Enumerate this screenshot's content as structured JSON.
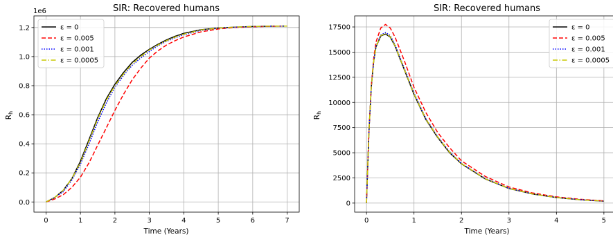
{
  "chart_data": [
    {
      "type": "line",
      "title": "SIR: Recovered humans",
      "xlabel": "Time (Years)",
      "ylabel": "R_h",
      "offset_text": "1e6",
      "xlim": [
        -0.35,
        7.35
      ],
      "ylim": [
        -0.07,
        1.28
      ],
      "xticks": [
        0,
        1,
        2,
        3,
        4,
        5,
        6,
        7
      ],
      "xtick_labels": [
        "0",
        "1",
        "2",
        "3",
        "4",
        "5",
        "6",
        "7"
      ],
      "yticks": [
        0,
        0.2,
        0.4,
        0.6,
        0.8,
        1.0,
        1.2
      ],
      "ytick_labels": [
        "0.0",
        "0.2",
        "0.4",
        "0.6",
        "0.8",
        "1.0",
        "1.2"
      ],
      "grid": true,
      "legend_position": "top-left",
      "x": [
        0,
        0.25,
        0.5,
        0.75,
        1,
        1.25,
        1.5,
        1.75,
        2,
        2.25,
        2.5,
        2.75,
        3,
        3.25,
        3.5,
        3.75,
        4,
        4.5,
        5,
        5.5,
        6,
        6.5,
        7
      ],
      "series": [
        {
          "name": "ε = 0",
          "color": "#000000",
          "dash": "solid",
          "values": [
            0,
            0.03,
            0.08,
            0.16,
            0.28,
            0.43,
            0.58,
            0.71,
            0.81,
            0.89,
            0.96,
            1.01,
            1.05,
            1.085,
            1.115,
            1.14,
            1.16,
            1.185,
            1.197,
            1.203,
            1.207,
            1.209,
            1.21
          ]
        },
        {
          "name": "ε = 0.005",
          "color": "#ff0000",
          "dash": "dashed",
          "values": [
            0,
            0.02,
            0.05,
            0.1,
            0.17,
            0.27,
            0.39,
            0.51,
            0.63,
            0.74,
            0.84,
            0.92,
            0.99,
            1.04,
            1.08,
            1.11,
            1.135,
            1.17,
            1.19,
            1.2,
            1.205,
            1.208,
            1.21
          ]
        },
        {
          "name": "ε = 0.001",
          "color": "#0000ff",
          "dash": "dotted",
          "values": [
            0,
            0.03,
            0.07,
            0.15,
            0.26,
            0.4,
            0.55,
            0.68,
            0.79,
            0.87,
            0.94,
            0.99,
            1.035,
            1.075,
            1.105,
            1.13,
            1.15,
            1.18,
            1.195,
            1.202,
            1.206,
            1.209,
            1.21
          ]
        },
        {
          "name": "ε = 0.0005",
          "color": "#c8c800",
          "dash": "dashdot",
          "values": [
            0,
            0.03,
            0.08,
            0.16,
            0.27,
            0.42,
            0.57,
            0.7,
            0.8,
            0.88,
            0.95,
            1.0,
            1.045,
            1.08,
            1.11,
            1.135,
            1.155,
            1.183,
            1.196,
            1.203,
            1.207,
            1.209,
            1.21
          ]
        }
      ]
    },
    {
      "type": "line",
      "title": "SIR: Recovered humans",
      "xlabel": "Time (Years)",
      "ylabel": "R_h",
      "xlim": [
        -0.25,
        5.25
      ],
      "ylim": [
        -900,
        18600
      ],
      "xticks": [
        0,
        1,
        2,
        3,
        4,
        5
      ],
      "xtick_labels": [
        "0",
        "1",
        "2",
        "3",
        "4",
        "5"
      ],
      "yticks": [
        0,
        2500,
        5000,
        7500,
        10000,
        12500,
        15000,
        17500
      ],
      "ytick_labels": [
        "0",
        "2500",
        "5000",
        "7500",
        "10000",
        "12500",
        "15000",
        "17500"
      ],
      "grid": true,
      "legend_position": "top-right",
      "x": [
        0,
        0.05,
        0.1,
        0.15,
        0.2,
        0.3,
        0.4,
        0.5,
        0.6,
        0.8,
        1.0,
        1.25,
        1.5,
        1.75,
        2.0,
        2.5,
        3.0,
        3.5,
        4.0,
        4.5,
        5.0
      ],
      "series": [
        {
          "name": "ε = 0",
          "color": "#000000",
          "dash": "solid",
          "values": [
            0,
            7000,
            11500,
            14000,
            15500,
            16600,
            16800,
            16500,
            15600,
            13200,
            10800,
            8300,
            6500,
            5000,
            3900,
            2400,
            1450,
            900,
            550,
            330,
            190
          ]
        },
        {
          "name": "ε = 0.005",
          "color": "#ff0000",
          "dash": "dashed",
          "values": [
            0,
            7000,
            11600,
            14300,
            16000,
            17400,
            17750,
            17400,
            16500,
            14100,
            11500,
            9000,
            7000,
            5500,
            4200,
            2650,
            1600,
            1000,
            620,
            380,
            220
          ]
        },
        {
          "name": "ε = 0.001",
          "color": "#0000ff",
          "dash": "dotted",
          "values": [
            0,
            7000,
            11500,
            14050,
            15600,
            16700,
            16950,
            16650,
            15750,
            13350,
            10950,
            8400,
            6600,
            5100,
            3950,
            2450,
            1470,
            920,
            560,
            335,
            195
          ]
        },
        {
          "name": "ε = 0.0005",
          "color": "#c8c800",
          "dash": "dashdot",
          "values": [
            0,
            7000,
            11500,
            14000,
            15550,
            16650,
            16850,
            16550,
            15650,
            13250,
            10850,
            8350,
            6550,
            5050,
            3920,
            2420,
            1460,
            910,
            555,
            332,
            192
          ]
        }
      ]
    }
  ]
}
